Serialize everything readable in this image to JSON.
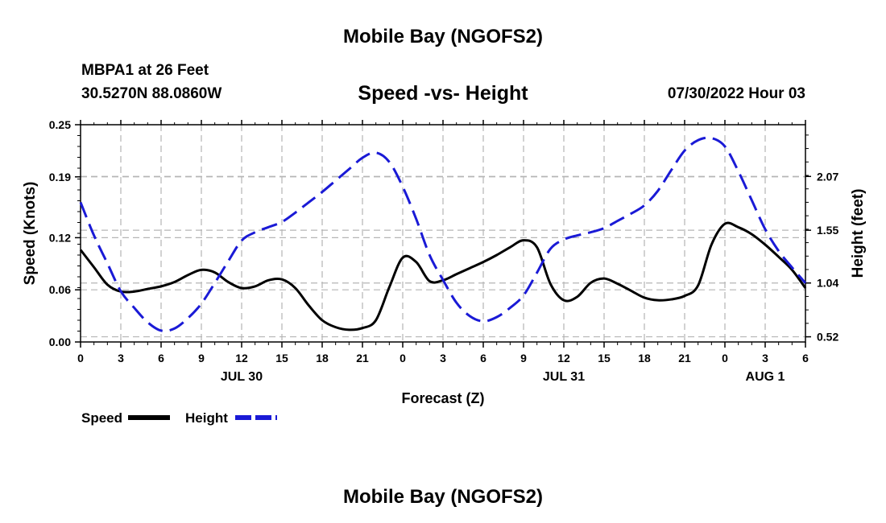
{
  "header": {
    "title": "Mobile Bay (NGOFS2)",
    "station": "MBPA1 at 26 Feet",
    "coords": "30.5270N  88.0860W",
    "chart_title": "Speed -vs- Height",
    "timestamp": "07/30/2022 Hour 03"
  },
  "footer": {
    "title": "Mobile Bay (NGOFS2)"
  },
  "chart_data": {
    "type": "line",
    "title": "Speed -vs- Height",
    "xlabel": "Forecast (Z)",
    "ylabel": "Speed (Knots)",
    "ylabel_right": "Height (feet)",
    "x_range_hours": [
      0,
      54
    ],
    "x_ticks": [
      {
        "hour": 0,
        "label": "0"
      },
      {
        "hour": 3,
        "label": "3"
      },
      {
        "hour": 6,
        "label": "6"
      },
      {
        "hour": 9,
        "label": "9"
      },
      {
        "hour": 12,
        "label": "12"
      },
      {
        "hour": 15,
        "label": "15"
      },
      {
        "hour": 18,
        "label": "18"
      },
      {
        "hour": 21,
        "label": "21"
      },
      {
        "hour": 24,
        "label": "0"
      },
      {
        "hour": 27,
        "label": "3"
      },
      {
        "hour": 30,
        "label": "6"
      },
      {
        "hour": 33,
        "label": "9"
      },
      {
        "hour": 36,
        "label": "12"
      },
      {
        "hour": 39,
        "label": "15"
      },
      {
        "hour": 42,
        "label": "18"
      },
      {
        "hour": 45,
        "label": "21"
      },
      {
        "hour": 48,
        "label": "0"
      },
      {
        "hour": 51,
        "label": "3"
      },
      {
        "hour": 54,
        "label": "6"
      }
    ],
    "date_labels": [
      {
        "hour": 12,
        "label": "JUL 30"
      },
      {
        "hour": 36,
        "label": "JUL 31"
      },
      {
        "hour": 51,
        "label": "AUG 1"
      }
    ],
    "y_left": {
      "range": [
        0,
        0.25
      ],
      "ticks": [
        "0.00",
        "0.06",
        "0.12",
        "0.19",
        "0.25"
      ]
    },
    "y_right": {
      "range": [
        0.47,
        2.57
      ],
      "ticks": [
        "0.52",
        "1.04",
        "1.55",
        "2.07"
      ]
    },
    "series": [
      {
        "name": "Speed",
        "axis": "left",
        "color": "#000000",
        "style": "solid",
        "points": [
          [
            0,
            0.106
          ],
          [
            1,
            0.086
          ],
          [
            2,
            0.066
          ],
          [
            3,
            0.058
          ],
          [
            4,
            0.058
          ],
          [
            5,
            0.061
          ],
          [
            6,
            0.064
          ],
          [
            7,
            0.069
          ],
          [
            8,
            0.077
          ],
          [
            9,
            0.083
          ],
          [
            10,
            0.08
          ],
          [
            11,
            0.069
          ],
          [
            12,
            0.062
          ],
          [
            13,
            0.064
          ],
          [
            14,
            0.071
          ],
          [
            15,
            0.072
          ],
          [
            16,
            0.062
          ],
          [
            17,
            0.042
          ],
          [
            18,
            0.025
          ],
          [
            19,
            0.017
          ],
          [
            20,
            0.014
          ],
          [
            21,
            0.016
          ],
          [
            22,
            0.025
          ],
          [
            23,
            0.063
          ],
          [
            24,
            0.097
          ],
          [
            25,
            0.092
          ],
          [
            26,
            0.07
          ],
          [
            27,
            0.071
          ],
          [
            28,
            0.078
          ],
          [
            29,
            0.085
          ],
          [
            30,
            0.092
          ],
          [
            31,
            0.1
          ],
          [
            32,
            0.109
          ],
          [
            33,
            0.117
          ],
          [
            34,
            0.109
          ],
          [
            35,
            0.067
          ],
          [
            36,
            0.048
          ],
          [
            37,
            0.052
          ],
          [
            38,
            0.068
          ],
          [
            39,
            0.073
          ],
          [
            40,
            0.067
          ],
          [
            41,
            0.059
          ],
          [
            42,
            0.051
          ],
          [
            43,
            0.048
          ],
          [
            44,
            0.049
          ],
          [
            45,
            0.053
          ],
          [
            46,
            0.065
          ],
          [
            47,
            0.112
          ],
          [
            48,
            0.136
          ],
          [
            49,
            0.132
          ],
          [
            50,
            0.124
          ],
          [
            51,
            0.112
          ],
          [
            52,
            0.098
          ],
          [
            53,
            0.083
          ],
          [
            54,
            0.062
          ]
        ]
      },
      {
        "name": "Height",
        "axis": "right",
        "color": "#1a1ad6",
        "style": "dashed",
        "points": [
          [
            0,
            1.82
          ],
          [
            1,
            1.5
          ],
          [
            2,
            1.23
          ],
          [
            3,
            0.96
          ],
          [
            4,
            0.8
          ],
          [
            5,
            0.66
          ],
          [
            6,
            0.58
          ],
          [
            7,
            0.6
          ],
          [
            8,
            0.7
          ],
          [
            9,
            0.84
          ],
          [
            10,
            1.04
          ],
          [
            11,
            1.25
          ],
          [
            12,
            1.45
          ],
          [
            13,
            1.53
          ],
          [
            14,
            1.58
          ],
          [
            15,
            1.63
          ],
          [
            16,
            1.72
          ],
          [
            17,
            1.82
          ],
          [
            18,
            1.92
          ],
          [
            19,
            2.03
          ],
          [
            20,
            2.14
          ],
          [
            21,
            2.25
          ],
          [
            22,
            2.3
          ],
          [
            23,
            2.21
          ],
          [
            24,
            1.97
          ],
          [
            25,
            1.66
          ],
          [
            26,
            1.31
          ],
          [
            27,
            1.07
          ],
          [
            28,
            0.85
          ],
          [
            29,
            0.72
          ],
          [
            30,
            0.67
          ],
          [
            31,
            0.71
          ],
          [
            32,
            0.8
          ],
          [
            33,
            0.92
          ],
          [
            34,
            1.14
          ],
          [
            35,
            1.37
          ],
          [
            36,
            1.46
          ],
          [
            37,
            1.5
          ],
          [
            38,
            1.53
          ],
          [
            39,
            1.57
          ],
          [
            40,
            1.64
          ],
          [
            41,
            1.71
          ],
          [
            42,
            1.79
          ],
          [
            43,
            1.93
          ],
          [
            44,
            2.13
          ],
          [
            45,
            2.32
          ],
          [
            46,
            2.42
          ],
          [
            47,
            2.44
          ],
          [
            48,
            2.36
          ],
          [
            49,
            2.12
          ],
          [
            50,
            1.84
          ],
          [
            51,
            1.56
          ],
          [
            52,
            1.35
          ],
          [
            53,
            1.19
          ],
          [
            54,
            1.04
          ]
        ]
      }
    ],
    "legend": [
      {
        "label": "Speed",
        "color": "#000000",
        "style": "solid"
      },
      {
        "label": "Height",
        "color": "#1a1ad6",
        "style": "dashed"
      }
    ],
    "grid": true
  }
}
